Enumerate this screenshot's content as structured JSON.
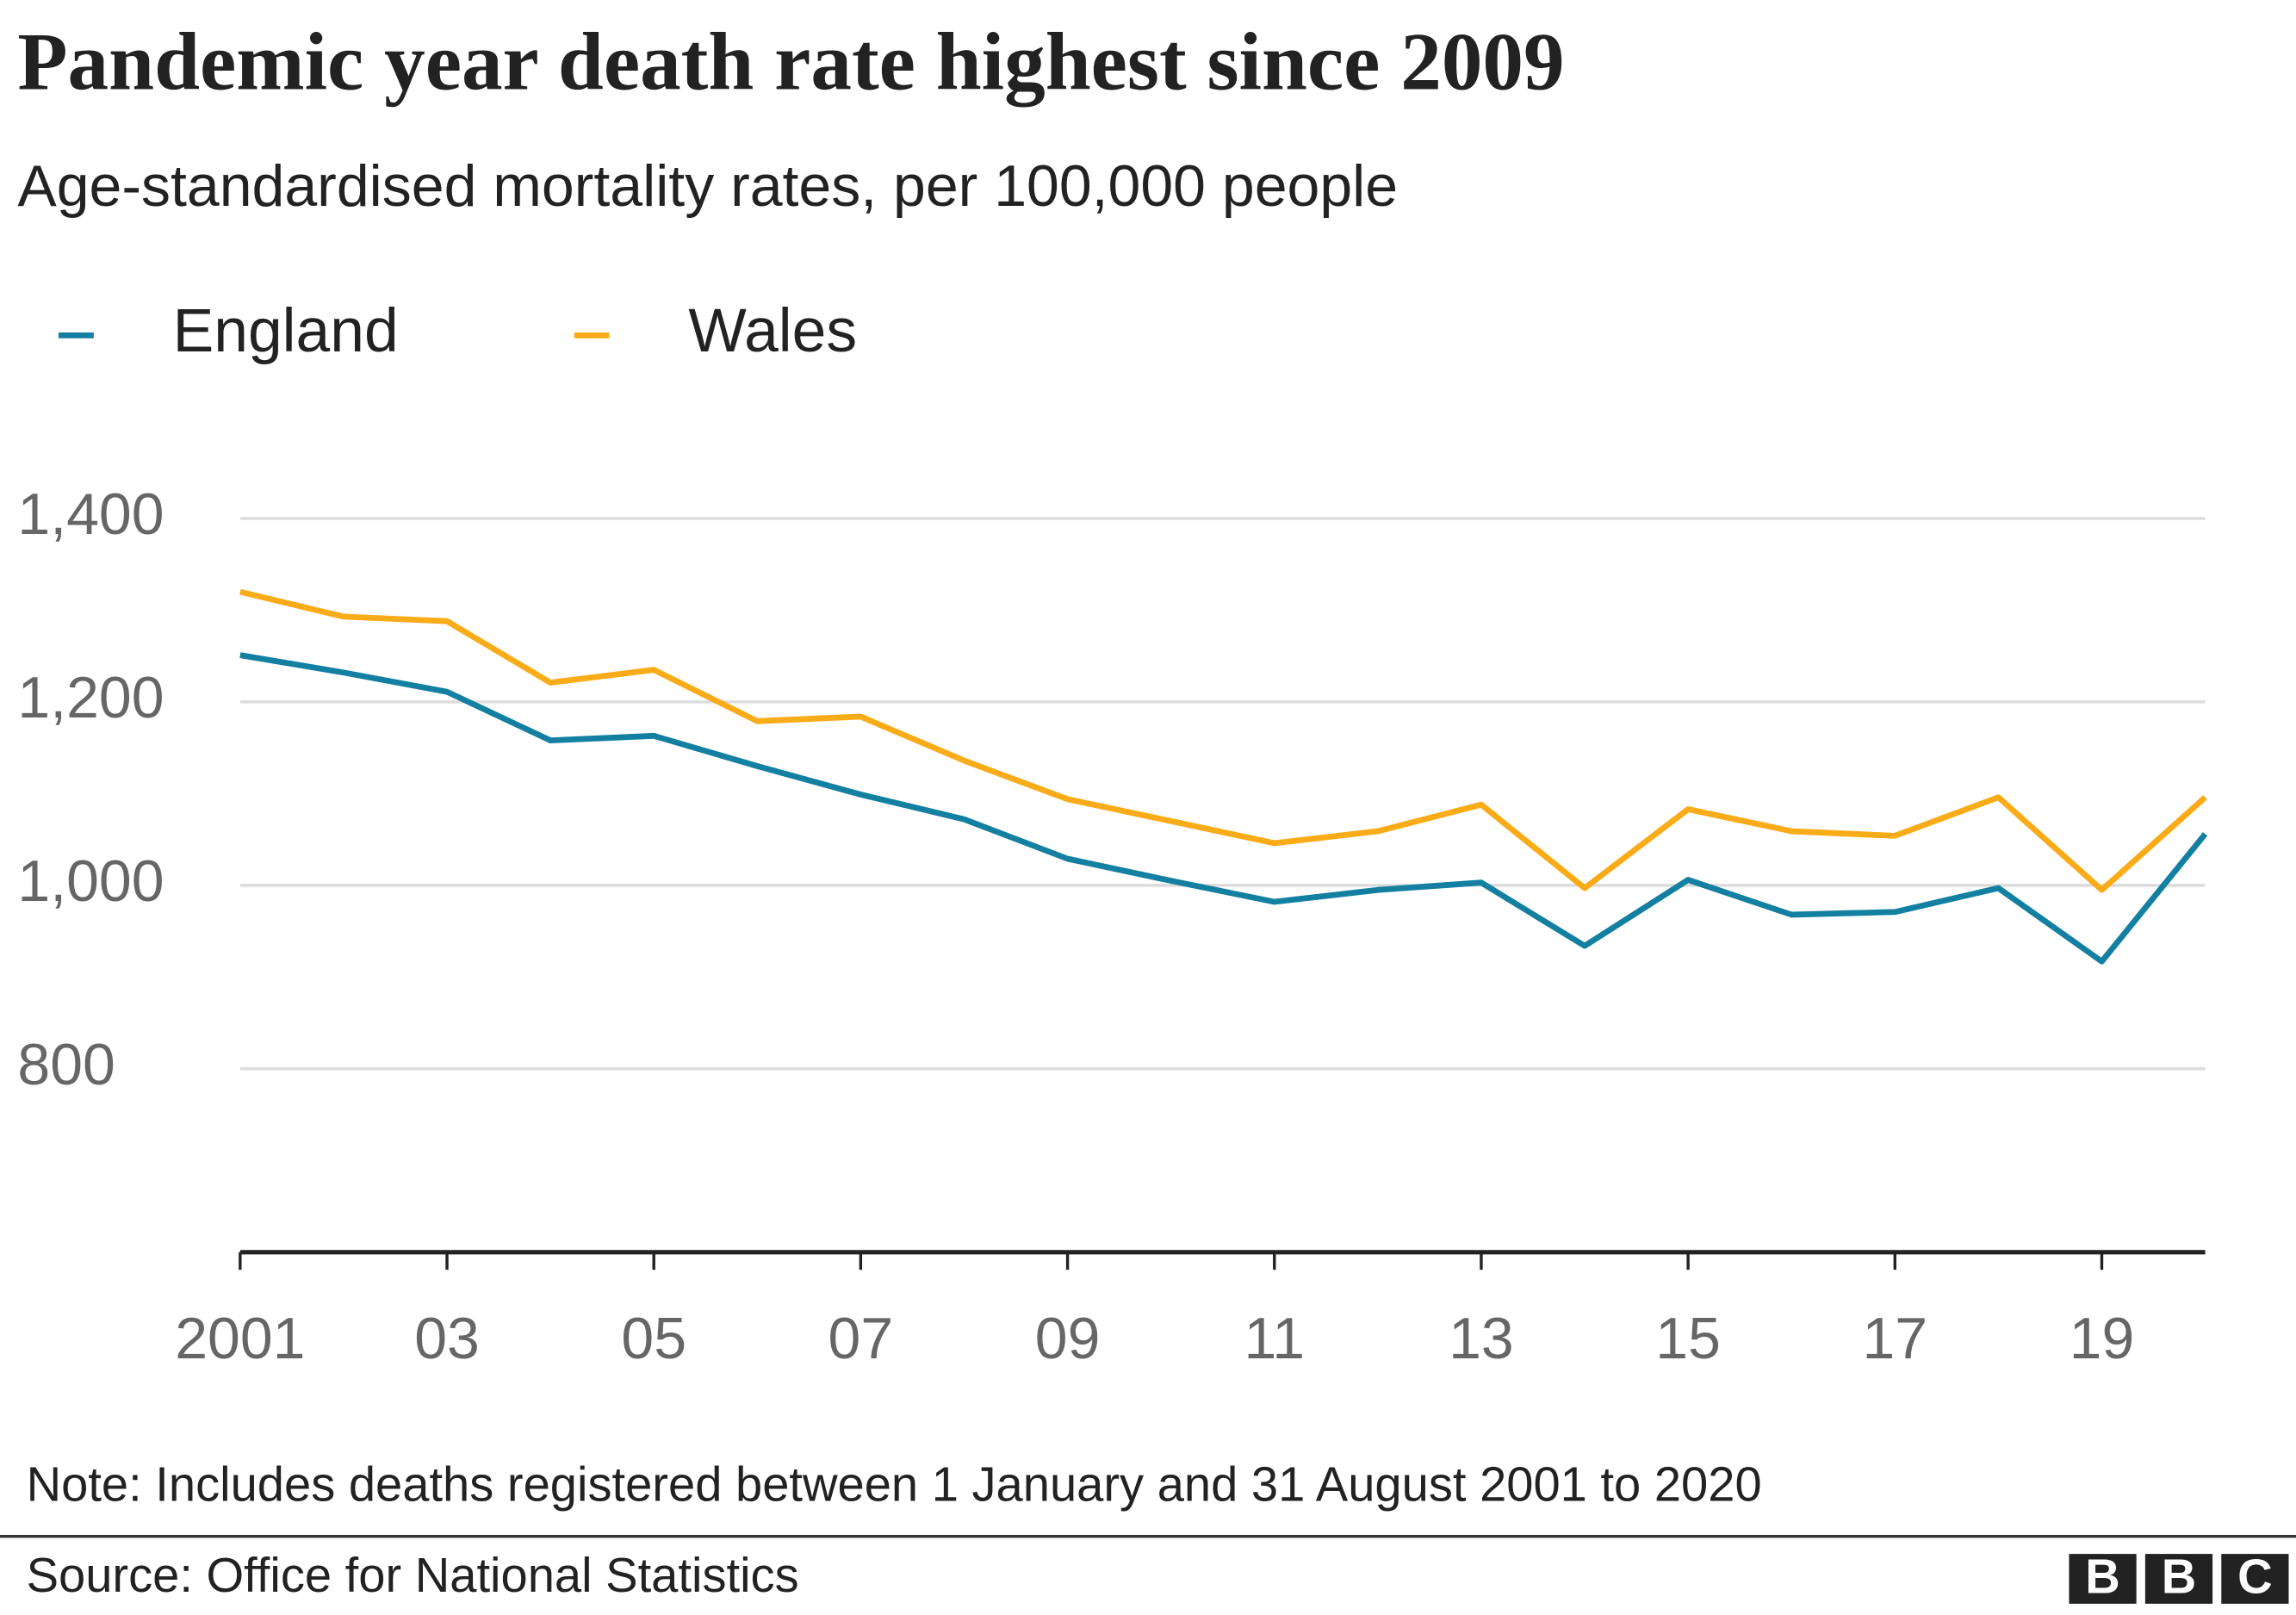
{
  "chart_data": {
    "type": "line",
    "title": "Pandemic year death rate highest since 2009",
    "subtitle": "Age-standardised mortality rates, per 100,000 people",
    "x": [
      2001,
      2002,
      2003,
      2004,
      2005,
      2006,
      2007,
      2008,
      2009,
      2010,
      2011,
      2012,
      2013,
      2014,
      2015,
      2016,
      2017,
      2018,
      2019,
      2020
    ],
    "series": [
      {
        "name": "England",
        "color": "#1380A1",
        "values": [
          1251,
          1232,
          1211,
          1158,
          1163,
          1130,
          1099,
          1072,
          1029,
          1005,
          982,
          995,
          1003,
          934,
          1006,
          968,
          971,
          997,
          917,
          1056
        ]
      },
      {
        "name": "Wales",
        "color": "#FAAB18",
        "values": [
          1320,
          1293,
          1288,
          1221,
          1235,
          1179,
          1184,
          1136,
          1094,
          1070,
          1046,
          1059,
          1088,
          997,
          1083,
          1059,
          1054,
          1096,
          995,
          1096
        ]
      }
    ],
    "xlim": [
      2001,
      2020
    ],
    "xticks": [
      2001,
      {
        "value": 2003,
        "label": "03"
      },
      {
        "value": 2005,
        "label": "05"
      },
      {
        "value": 2007,
        "label": "07"
      },
      {
        "value": 2009,
        "label": "09"
      },
      {
        "value": 2011,
        "label": "11"
      },
      {
        "value": 2013,
        "label": "13"
      },
      {
        "value": 2015,
        "label": "15"
      },
      {
        "value": 2017,
        "label": "17"
      },
      {
        "value": 2019,
        "label": "19"
      }
    ],
    "ylim": [
      600,
      1400
    ],
    "yticks": [
      {
        "value": 800,
        "label": "800"
      },
      {
        "value": 1000,
        "label": "1,000"
      },
      {
        "value": 1200,
        "label": "1,200"
      },
      {
        "value": 1400,
        "label": "1,400"
      }
    ],
    "grid": true,
    "legend": "top-left",
    "note": "Note: Includes deaths registered between 1 January and 31 August 2001 to 2020",
    "source": "Source: Office for National Statistics",
    "logo": [
      "B",
      "B",
      "C"
    ]
  }
}
